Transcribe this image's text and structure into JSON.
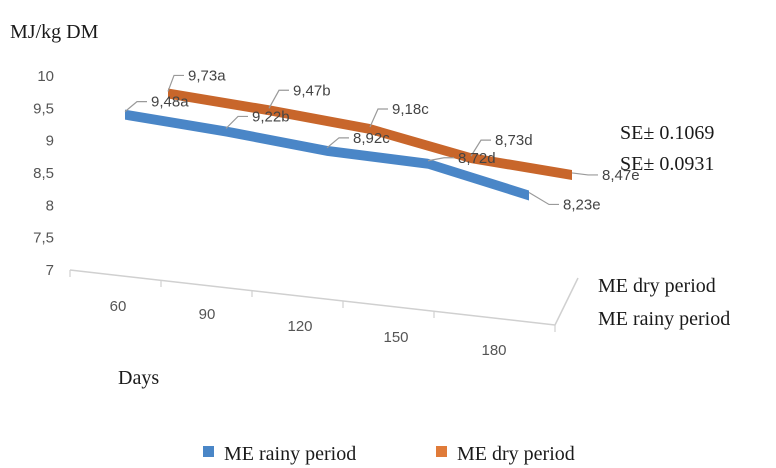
{
  "chart_data": {
    "type": "line",
    "ylabel": "MJ/kg DM",
    "xlabel": "Days",
    "categories": [
      "60",
      "90",
      "120",
      "150",
      "180"
    ],
    "y_ticks": [
      "10",
      "9,5",
      "9",
      "8,5",
      "8",
      "7,5",
      "7"
    ],
    "ylim": [
      7,
      10
    ],
    "series": [
      {
        "name": "ME rainy period",
        "color": "#4a86c7",
        "values": [
          9.48,
          9.22,
          8.92,
          8.72,
          8.23
        ],
        "labels": [
          "9,48a",
          "9,22b",
          "8,92c",
          "8,72d",
          "8,23e"
        ]
      },
      {
        "name": "ME dry period",
        "color": "#c8662b",
        "values": [
          9.73,
          9.47,
          9.18,
          8.73,
          8.47
        ],
        "labels": [
          "9,73a",
          "9,47b",
          "9,18c",
          "8,73d",
          "8,47e"
        ]
      }
    ],
    "se_annotations": [
      "SE± 0.1069",
      "SE± 0.0931"
    ],
    "depth_axis_labels": [
      "ME dry period",
      "ME rainy period"
    ],
    "legend": {
      "position": "bottom",
      "items": [
        "ME rainy period",
        "ME dry period"
      ]
    },
    "grid": false
  }
}
